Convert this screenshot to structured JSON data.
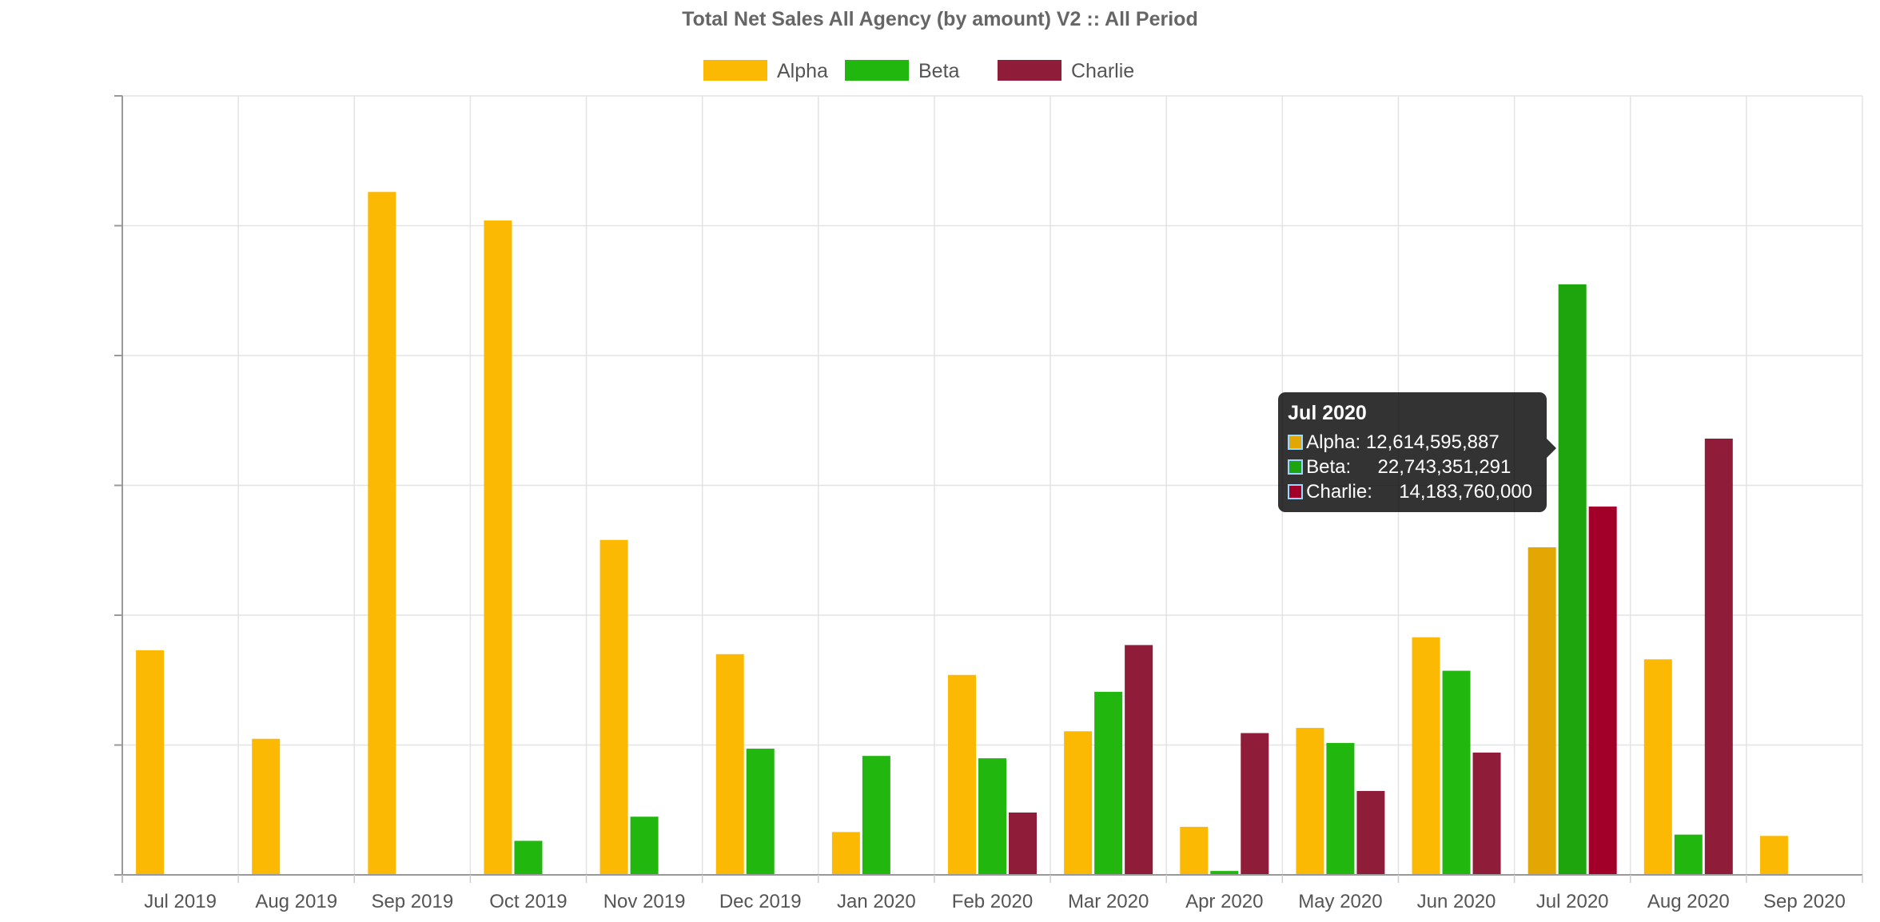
{
  "chart_data": {
    "type": "bar",
    "title": "Total Net Sales All Agency (by amount) V2 :: All Period",
    "categories": [
      "Jul 2019",
      "Aug 2019",
      "Sep 2019",
      "Oct 2019",
      "Nov 2019",
      "Dec 2019",
      "Jan 2020",
      "Feb 2020",
      "Mar 2020",
      "Apr 2020",
      "May 2020",
      "Jun 2020",
      "Jul 2020",
      "Aug 2020",
      "Sep 2020"
    ],
    "series": [
      {
        "name": "Alpha",
        "color": "#fcb904",
        "values": [
          8650000000,
          5240000000,
          26300000000,
          25200000000,
          12900000000,
          8500000000,
          1650000000,
          7700000000,
          5530000000,
          1850000000,
          5660000000,
          9150000000,
          12614595887,
          8300000000,
          1500000000
        ]
      },
      {
        "name": "Beta",
        "color": "#21b70f",
        "values": [
          0,
          0,
          0,
          1310000000,
          2240000000,
          4860000000,
          4580000000,
          4490000000,
          7050000000,
          150000000,
          5080000000,
          7860000000,
          22743351291,
          1550000000,
          0
        ]
      },
      {
        "name": "Charlie",
        "color": "#8f1d3a",
        "values": [
          0,
          0,
          0,
          0,
          0,
          0,
          0,
          2400000000,
          8850000000,
          5460000000,
          3230000000,
          4710000000,
          14183760000,
          16800000000,
          0
        ]
      }
    ],
    "ylim": [
      0,
      30000000000
    ],
    "y_grid_step": 5000000000,
    "y_tick_labels_visible": false,
    "grid": true,
    "legend_position": "top-center",
    "highlighted_category": "Jul 2020",
    "highlight_colors": [
      "#e3a703",
      "#1ea50d",
      "#a20028"
    ]
  },
  "tooltip": {
    "title": "Jul 2020",
    "rows": [
      {
        "label": "Alpha: ",
        "value": "12,614,595,887",
        "color": "#e3a703"
      },
      {
        "label": "Beta:     ",
        "value": "22,743,351,291",
        "color": "#1ea50d"
      },
      {
        "label": "Charlie:     ",
        "value": "14,183,760,000",
        "color": "#a20028"
      }
    ]
  }
}
